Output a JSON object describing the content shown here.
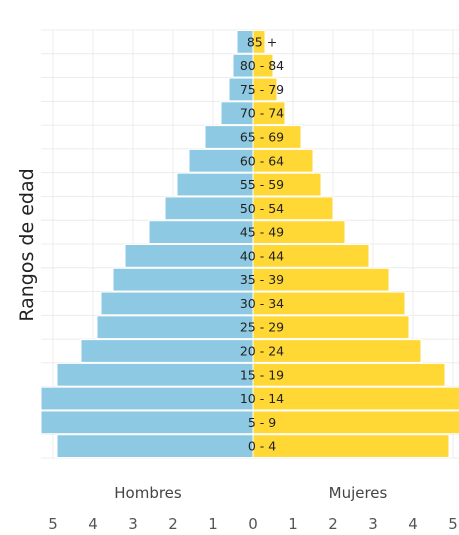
{
  "chart_data": {
    "type": "bar",
    "orientation": "horizontal-population-pyramid",
    "ylabel": "Rangos de edad",
    "xlabel": "",
    "categories": [
      "0 - 4",
      "5 - 9",
      "10 - 14",
      "15 - 19",
      "20 - 24",
      "25 - 29",
      "30 - 34",
      "35 - 39",
      "40 - 44",
      "45 - 49",
      "50 - 54",
      "55 - 59",
      "60 - 64",
      "65 - 69",
      "70 - 74",
      "75 - 79",
      "80 - 84",
      "85 +"
    ],
    "series": [
      {
        "name": "Hombres",
        "color": "#8ec9e3",
        "side": "left",
        "values": [
          4.9,
          5.3,
          5.3,
          4.9,
          4.3,
          3.9,
          3.8,
          3.5,
          3.2,
          2.6,
          2.2,
          1.9,
          1.6,
          1.2,
          0.8,
          0.6,
          0.5,
          0.4
        ]
      },
      {
        "name": "Mujeres",
        "color": "#ffd836",
        "side": "right",
        "values": [
          4.9,
          5.2,
          5.2,
          4.8,
          4.2,
          3.9,
          3.8,
          3.4,
          2.9,
          2.3,
          2.0,
          1.7,
          1.5,
          1.2,
          0.8,
          0.6,
          0.5,
          0.3
        ]
      }
    ],
    "x_ticks": [
      "5",
      "4",
      "3",
      "2",
      "1",
      "0",
      "1",
      "2",
      "3",
      "4",
      "5"
    ],
    "xlim": [
      -5.3,
      5.3
    ],
    "grid": true,
    "legend": "none"
  }
}
